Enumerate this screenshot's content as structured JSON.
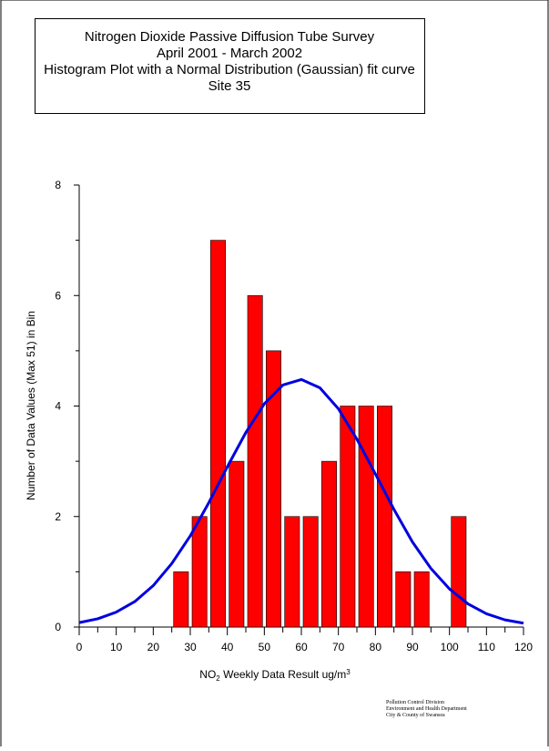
{
  "chart_data": {
    "type": "histogram",
    "title_lines": [
      "Nitrogen Dioxide Passive Diffusion Tube Survey",
      "April 2001 - March 2002",
      "Histogram Plot with a Normal Distribution (Gaussian) fit curve",
      "Site 35"
    ],
    "xlabel": [
      "NO",
      "2",
      " Weekly Data Result ug/m",
      "3"
    ],
    "ylabel": "Number of Data Values (Max 51) in Bin",
    "bins": [
      25,
      30,
      35,
      40,
      45,
      50,
      55,
      60,
      65,
      70,
      75,
      80,
      85,
      90,
      95,
      100,
      105
    ],
    "values": [
      1,
      2,
      7,
      3,
      6,
      5,
      2,
      2,
      3,
      4,
      4,
      4,
      1,
      1,
      0,
      2
    ],
    "color": "#ff0000",
    "curve": {
      "color": "#0000e0",
      "x": [
        0,
        5,
        10,
        15,
        20,
        25,
        30,
        35,
        40,
        45,
        50,
        55,
        60,
        65,
        70,
        75,
        80,
        85,
        90,
        95,
        100,
        105,
        110,
        115,
        120
      ],
      "values": [
        0.08,
        0.15,
        0.27,
        0.46,
        0.75,
        1.15,
        1.65,
        2.25,
        2.9,
        3.52,
        4.04,
        4.38,
        4.48,
        4.33,
        3.95,
        3.4,
        2.77,
        2.13,
        1.54,
        1.06,
        0.69,
        0.42,
        0.24,
        0.13,
        0.07
      ]
    },
    "xlim": [
      0,
      120
    ],
    "ylim": [
      0,
      8
    ],
    "xticks": [
      0,
      10,
      20,
      30,
      40,
      50,
      60,
      70,
      80,
      90,
      100,
      110,
      120
    ],
    "xminor": [
      5,
      15,
      25,
      35,
      45,
      55,
      65,
      75,
      85,
      95,
      105,
      115
    ],
    "yticks": [
      0,
      2,
      4,
      6,
      8
    ],
    "yminor": [
      1,
      3,
      5,
      7
    ],
    "footer": [
      "Pollution Control Division",
      "Environment and Health Department",
      "City & County of Swansea"
    ]
  }
}
